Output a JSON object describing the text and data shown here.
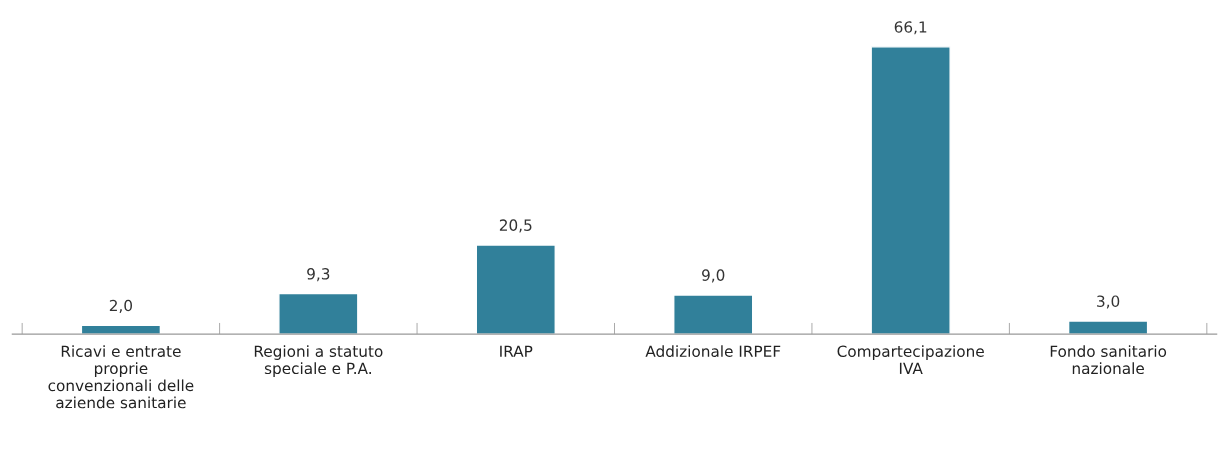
{
  "chart_data": {
    "type": "bar",
    "categories": [
      "Ricavi e entrate\nproprie\nconvenzionali delle\naziende sanitarie",
      "Regioni a statuto\nspeciale e P.A.",
      "IRAP",
      "Addizionale IRPEF",
      "Compartecipazione\nIVA",
      "Fondo sanitario\nnazionale"
    ],
    "values": [
      2.0,
      9.3,
      20.5,
      9.0,
      66.1,
      3.0
    ],
    "value_labels": [
      "2,0",
      "9,3",
      "20,5",
      "9,0",
      "66,1",
      "3,0"
    ],
    "color": "#31809a",
    "grid": false,
    "legend": false
  }
}
